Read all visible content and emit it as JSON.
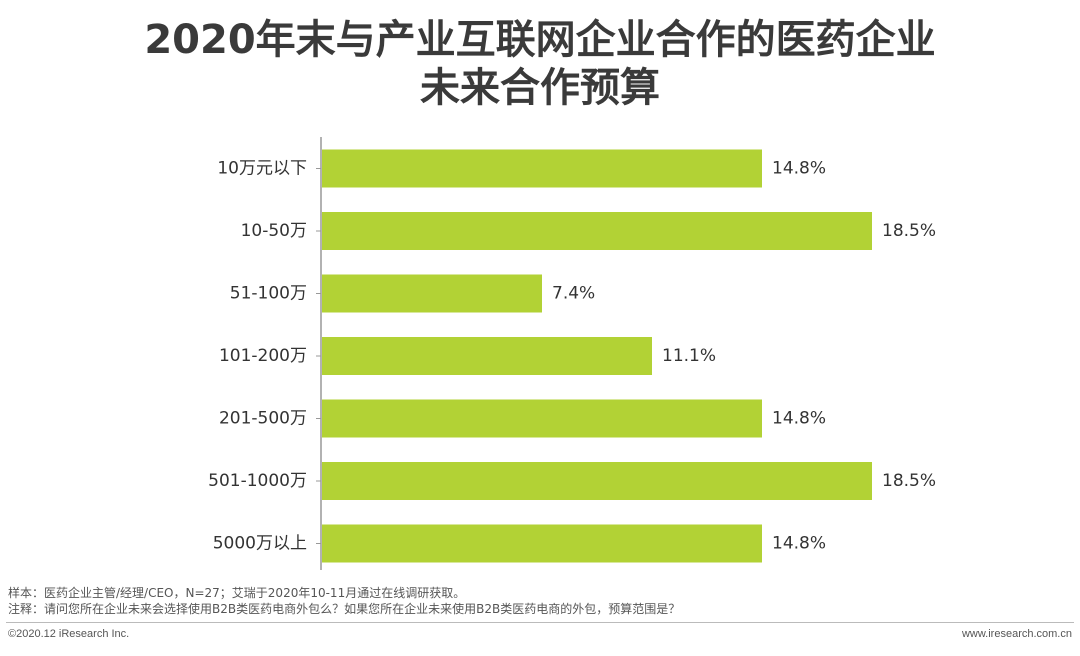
{
  "header": {
    "title_line1": "2020年末与产业互联网企业合作的医药企业",
    "title_line2": "未来合作预算"
  },
  "chart_data": {
    "type": "bar",
    "orientation": "horizontal",
    "categories": [
      "10万元以下",
      "10-50万",
      "51-100万",
      "101-200万",
      "201-500万",
      "501-1000万",
      "5000万以上"
    ],
    "values": [
      14.8,
      18.5,
      7.4,
      11.1,
      14.8,
      18.5,
      14.8
    ],
    "value_labels": [
      "14.8%",
      "18.5%",
      "7.4%",
      "11.1%",
      "14.8%",
      "18.5%",
      "14.8%"
    ],
    "unit": "%",
    "xlim": [
      0,
      18.5
    ],
    "grid": false,
    "bar_color": "#b2d235"
  },
  "footer": {
    "sample": "样本：医药企业主管/经理/CEO，N=27；艾瑞于2020年10-11月通过在线调研获取。",
    "note": "注释：请问您所在企业未来会选择使用B2B类医药电商外包么？如果您所在企业未来使用B2B类医药电商的外包，预算范围是？",
    "copyright": "©2020.12 iResearch Inc.",
    "website": "www.iresearch.com.cn"
  }
}
